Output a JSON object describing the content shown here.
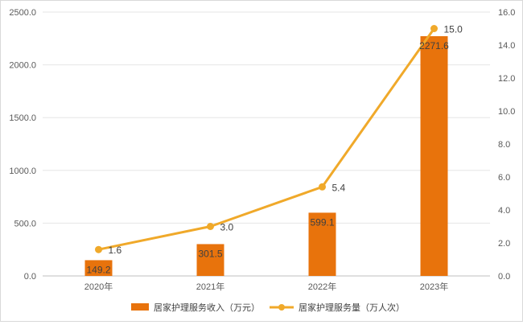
{
  "chart_data": {
    "type": "bar",
    "categories": [
      "2020年",
      "2021年",
      "2022年",
      "2023年"
    ],
    "series": [
      {
        "name": "居家护理服务收入（万元）",
        "type": "bar",
        "axis": "left",
        "color": "#e8730c",
        "values": [
          149.2,
          301.5,
          599.1,
          2271.6
        ],
        "labels": [
          "149.2",
          "301.5",
          "599.1",
          "2271.6"
        ]
      },
      {
        "name": "居家护理服务量（万人次）",
        "type": "line",
        "axis": "right",
        "color": "#f0a92a",
        "values": [
          1.6,
          3.0,
          5.4,
          15.0
        ],
        "labels": [
          "1.6",
          "3.0",
          "5.4",
          "15.0"
        ]
      }
    ],
    "y_left": {
      "range": [
        0,
        2500
      ],
      "ticks": [
        0,
        500,
        1000,
        1500,
        2000,
        2500
      ],
      "tick_labels": [
        "0.0",
        "500.0",
        "1000.0",
        "1500.0",
        "2000.0",
        "2500.0"
      ]
    },
    "y_right": {
      "range": [
        0,
        16
      ],
      "ticks": [
        0,
        2,
        4,
        6,
        8,
        10,
        12,
        14,
        16
      ],
      "tick_labels": [
        "0.0",
        "2.0",
        "4.0",
        "6.0",
        "8.0",
        "10.0",
        "12.0",
        "14.0",
        "16.0"
      ]
    },
    "grid": true,
    "legend_position": "bottom"
  }
}
